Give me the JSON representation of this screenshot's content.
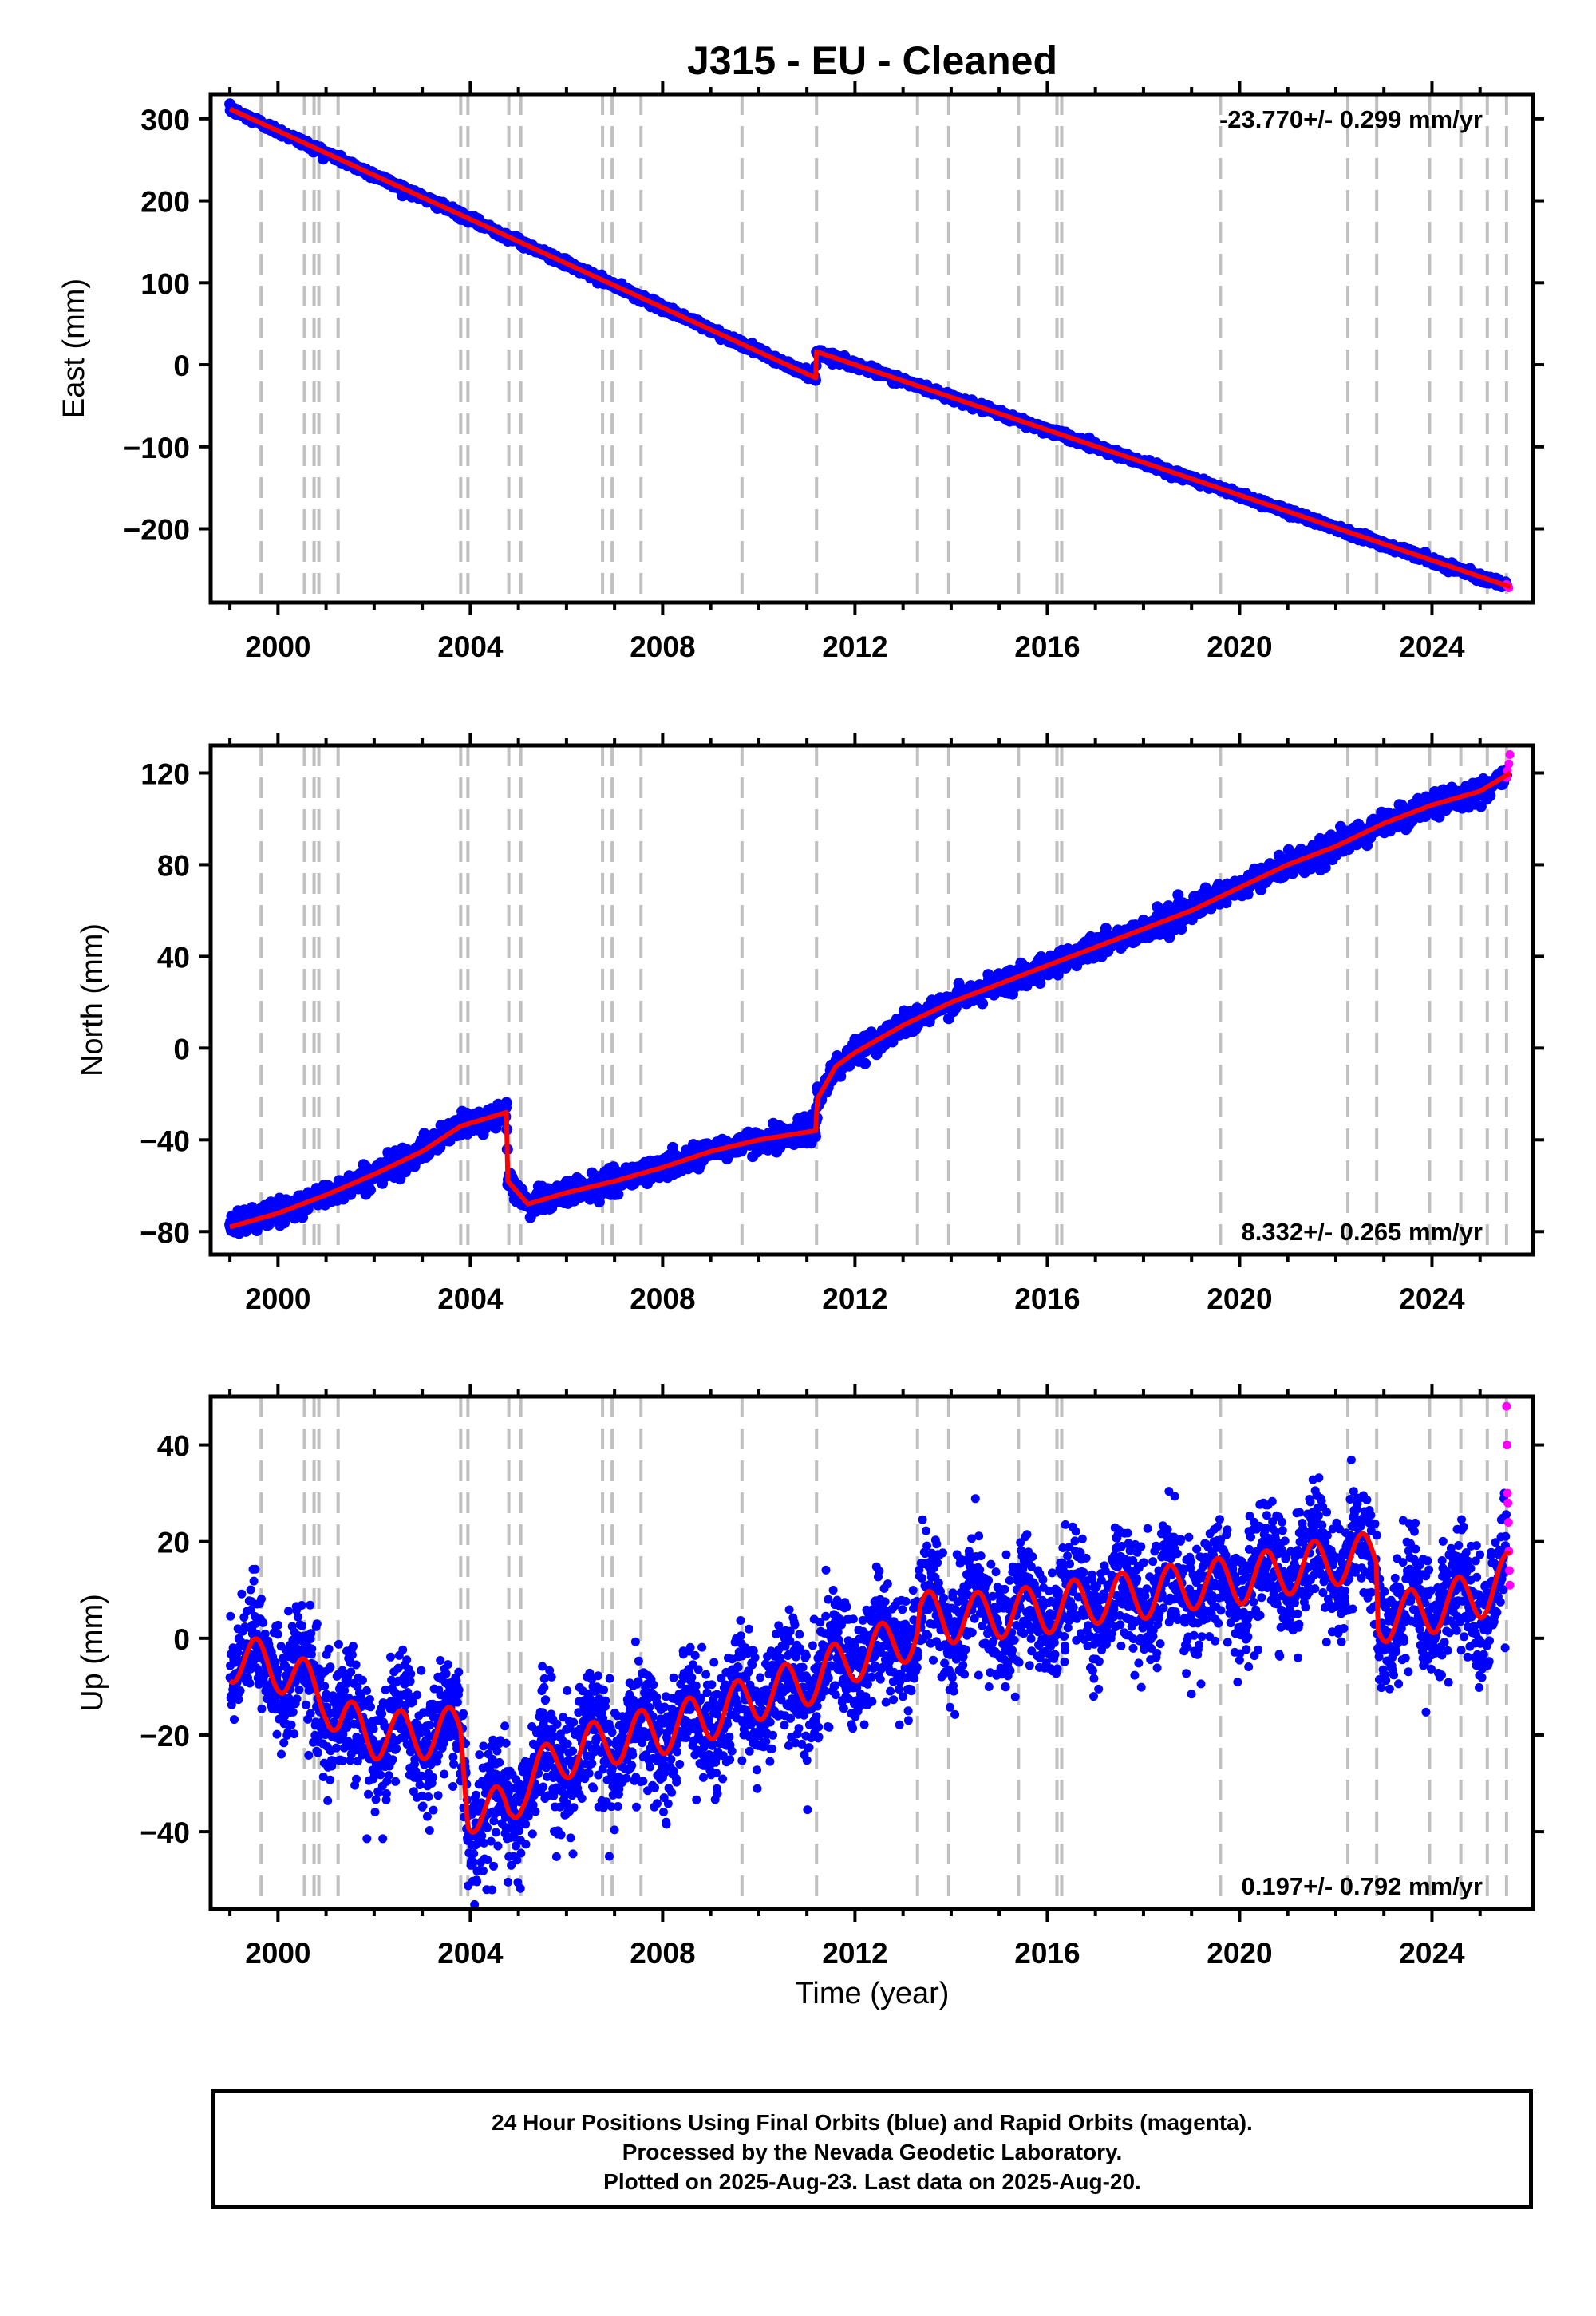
{
  "title": "J315  - EU - Cleaned",
  "xlabel": "Time (year)",
  "footer": {
    "line1": "24 Hour Positions Using Final Orbits (blue) and Rapid Orbits (magenta).",
    "line2": "Processed by the Nevada Geodetic Laboratory.",
    "line3": "Plotted on 2025-Aug-23. Last data on 2025-Aug-20."
  },
  "colors": {
    "final": "#0000ff",
    "rapid": "#ff00ff",
    "model": "#ff0000",
    "event_lines": "#c0c0c0"
  },
  "chart_data": [
    {
      "type": "scatter",
      "panel": "east",
      "ylabel": "East (mm)",
      "rate_label": "-23.770+/- 0.299 mm/yr",
      "rate_position": "top-right",
      "xlim": [
        1998.6,
        2026.1
      ],
      "ylim": [
        -290,
        330
      ],
      "xticks": [
        2000,
        2004,
        2008,
        2012,
        2016,
        2020,
        2024
      ],
      "yticks": [
        300,
        200,
        100,
        0,
        -100,
        -200
      ],
      "event_lines": [
        1999.65,
        2000.55,
        2000.75,
        2000.85,
        2001.25,
        2003.8,
        2003.95,
        2004.8,
        2005.05,
        2006.75,
        2006.95,
        2007.55,
        2009.65,
        2011.2,
        2013.3,
        2013.95,
        2015.4,
        2016.2,
        2016.3,
        2019.6,
        2022.25,
        2022.85,
        2023.95,
        2024.6,
        2025.15,
        2025.55
      ],
      "model": [
        [
          1999.0,
          312
        ],
        [
          2011.18,
          -16
        ],
        [
          2011.2,
          16
        ],
        [
          2025.63,
          -271
        ]
      ],
      "scatter_sd": 2.2,
      "rapid": [
        [
          2025.55,
          -268
        ],
        [
          2025.57,
          -270
        ],
        [
          2025.6,
          -272
        ]
      ]
    },
    {
      "type": "scatter",
      "panel": "north",
      "ylabel": "North (mm)",
      "rate_label": "8.332+/- 0.265 mm/yr",
      "rate_position": "bottom-right",
      "xlim": [
        1998.6,
        2026.1
      ],
      "ylim": [
        -90,
        132
      ],
      "xticks": [
        2000,
        2004,
        2008,
        2012,
        2016,
        2020,
        2024
      ],
      "yticks": [
        120,
        80,
        40,
        0,
        -40,
        -80
      ],
      "event_lines": [
        1999.65,
        2000.55,
        2000.75,
        2000.85,
        2001.25,
        2003.8,
        2003.95,
        2004.8,
        2005.05,
        2006.75,
        2006.95,
        2007.55,
        2009.65,
        2011.2,
        2013.3,
        2013.95,
        2015.4,
        2016.2,
        2016.3,
        2019.6,
        2022.25,
        2022.85,
        2023.95,
        2024.6,
        2025.15,
        2025.55
      ],
      "model": [
        [
          1999.0,
          -78
        ],
        [
          2000.0,
          -72
        ],
        [
          2001.0,
          -64
        ],
        [
          2002.0,
          -55
        ],
        [
          2003.0,
          -45
        ],
        [
          2003.8,
          -34
        ],
        [
          2004.75,
          -28
        ],
        [
          2004.78,
          -58
        ],
        [
          2005.2,
          -68
        ],
        [
          2006.0,
          -63
        ],
        [
          2007.0,
          -58
        ],
        [
          2008.0,
          -52
        ],
        [
          2009.0,
          -45
        ],
        [
          2010.0,
          -40
        ],
        [
          2011.18,
          -36
        ],
        [
          2011.22,
          -22
        ],
        [
          2011.6,
          -8
        ],
        [
          2012.0,
          -2
        ],
        [
          2013.0,
          10
        ],
        [
          2014.0,
          20
        ],
        [
          2015.0,
          28
        ],
        [
          2016.0,
          36
        ],
        [
          2017.0,
          44
        ],
        [
          2018.0,
          52
        ],
        [
          2019.0,
          60
        ],
        [
          2020.0,
          70
        ],
        [
          2021.0,
          80
        ],
        [
          2022.0,
          88
        ],
        [
          2023.0,
          98
        ],
        [
          2024.0,
          106
        ],
        [
          2025.0,
          112
        ],
        [
          2025.63,
          120
        ]
      ],
      "scatter_sd": 2.5,
      "rapid": [
        [
          2025.55,
          118
        ],
        [
          2025.57,
          121
        ],
        [
          2025.6,
          124
        ],
        [
          2025.62,
          128
        ]
      ]
    },
    {
      "type": "scatter",
      "panel": "up",
      "ylabel": "Up (mm)",
      "rate_label": "0.197+/- 0.792 mm/yr",
      "rate_position": "bottom-right",
      "xlim": [
        1998.6,
        2026.1
      ],
      "ylim": [
        -56,
        50
      ],
      "xticks": [
        2000,
        2004,
        2008,
        2012,
        2016,
        2020,
        2024
      ],
      "yticks": [
        40,
        20,
        0,
        -20,
        -40
      ],
      "event_lines": [
        1999.65,
        2000.55,
        2000.75,
        2000.85,
        2001.25,
        2003.8,
        2003.95,
        2004.8,
        2005.05,
        2006.75,
        2006.95,
        2007.55,
        2009.65,
        2011.2,
        2013.3,
        2013.95,
        2015.4,
        2016.2,
        2016.3,
        2019.6,
        2022.25,
        2022.85,
        2023.95,
        2024.6,
        2025.15,
        2025.55
      ],
      "model": [
        [
          1999.0,
          -4
        ],
        [
          2000.0,
          -6
        ],
        [
          2001.0,
          -12
        ],
        [
          2001.25,
          -17
        ],
        [
          2002.0,
          -20
        ],
        [
          2003.0,
          -20
        ],
        [
          2003.8,
          -19
        ],
        [
          2003.95,
          -35
        ],
        [
          2004.8,
          -36
        ],
        [
          2005.1,
          -30
        ],
        [
          2006.0,
          -24
        ],
        [
          2007.0,
          -21
        ],
        [
          2008.0,
          -19
        ],
        [
          2009.0,
          -16
        ],
        [
          2010.0,
          -12
        ],
        [
          2011.0,
          -9
        ],
        [
          2012.0,
          -4
        ],
        [
          2013.3,
          1
        ],
        [
          2013.35,
          5
        ],
        [
          2014.0,
          4
        ],
        [
          2015.0,
          5
        ],
        [
          2016.0,
          6
        ],
        [
          2017.0,
          8
        ],
        [
          2018.0,
          9
        ],
        [
          2019.0,
          11
        ],
        [
          2020.0,
          12
        ],
        [
          2021.0,
          14
        ],
        [
          2022.0,
          16
        ],
        [
          2022.85,
          17
        ],
        [
          2022.87,
          4
        ],
        [
          2023.5,
          5
        ],
        [
          2024.0,
          6
        ],
        [
          2025.0,
          9
        ],
        [
          2025.63,
          13
        ]
      ],
      "seasonal_amp": 5,
      "scatter_sd": 6,
      "rapid": [
        [
          2025.55,
          48
        ],
        [
          2025.56,
          40
        ],
        [
          2025.57,
          30
        ],
        [
          2025.58,
          28
        ],
        [
          2025.59,
          24
        ],
        [
          2025.6,
          18
        ],
        [
          2025.61,
          14
        ],
        [
          2025.62,
          11
        ]
      ]
    }
  ]
}
